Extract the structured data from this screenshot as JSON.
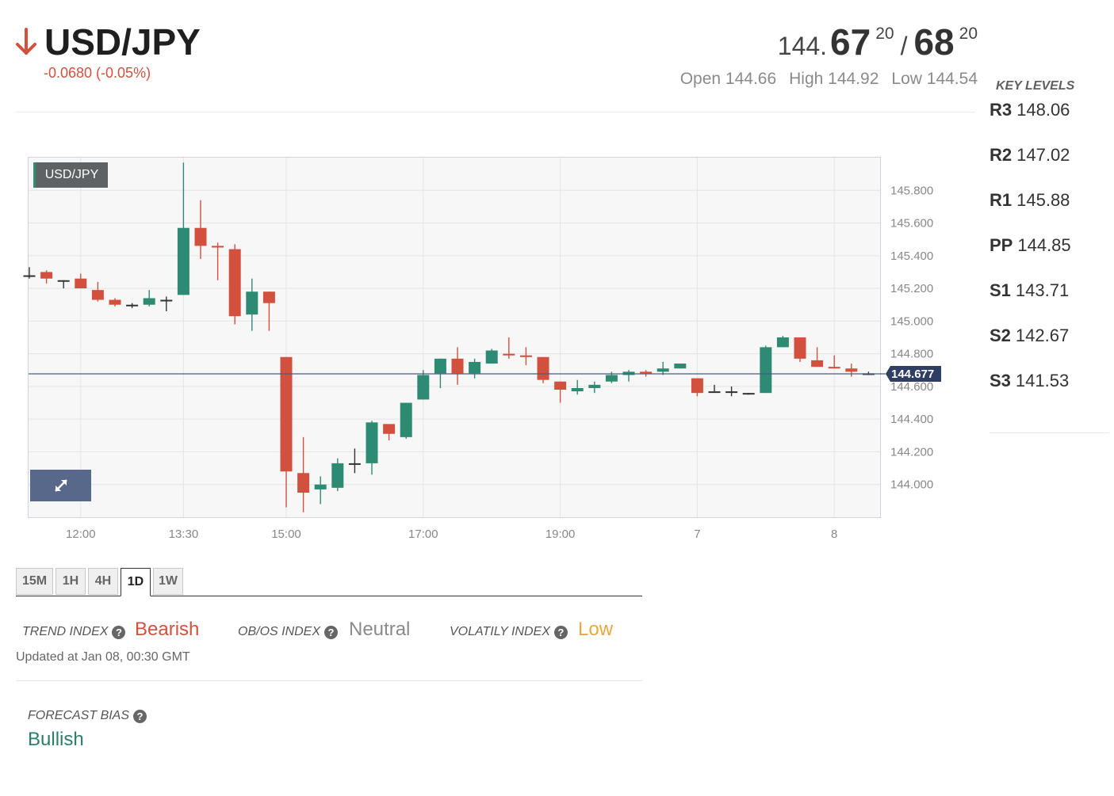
{
  "header": {
    "pair": "USD/JPY",
    "direction_icon": "arrow-down-icon",
    "change": "-0.0680 (-0.05%)",
    "bid_prefix": "144.",
    "bid_big": "67",
    "bid_sup": "20",
    "separator": "/",
    "ask_big": "68",
    "ask_sup": "20",
    "open": "Open 144.66",
    "high": "High 144.92",
    "low": "Low 144.54"
  },
  "key_levels": {
    "title": "KEY LEVELS",
    "items": [
      {
        "name": "R3",
        "value": "148.06"
      },
      {
        "name": "R2",
        "value": "147.02"
      },
      {
        "name": "R1",
        "value": "145.88"
      },
      {
        "name": "PP",
        "value": "144.85"
      },
      {
        "name": "S1",
        "value": "143.71"
      },
      {
        "name": "S2",
        "value": "142.67"
      },
      {
        "name": "S3",
        "value": "141.53"
      }
    ]
  },
  "chart_symbol_label": "USD/JPY",
  "chart_data": {
    "type": "candlestick",
    "title": "",
    "xlabel": "",
    "ylabel": "",
    "ylim": [
      143.8,
      146.0
    ],
    "y_ticks": [
      "145.800",
      "145.600",
      "145.400",
      "145.200",
      "145.000",
      "144.800",
      "144.600",
      "144.400",
      "144.200",
      "144.000"
    ],
    "x_tick_labels": [
      {
        "label": "12:00",
        "index": 3
      },
      {
        "label": "13:30",
        "index": 9
      },
      {
        "label": "15:00",
        "index": 15
      },
      {
        "label": "17:00",
        "index": 23
      },
      {
        "label": "19:00",
        "index": 31
      },
      {
        "label": "7",
        "index": 39
      },
      {
        "label": "8",
        "index": 47
      }
    ],
    "current_price": "144.677",
    "current_value": 144.677,
    "colors": {
      "up": "#2e8b73",
      "down": "#d2513e",
      "doji": "#333333",
      "price_line": "#4a5c7f",
      "price_tag": "#2e3f63"
    },
    "candles": [
      {
        "o": 145.28,
        "h": 145.33,
        "l": 145.26,
        "c": 145.28
      },
      {
        "o": 145.3,
        "h": 145.31,
        "l": 145.23,
        "c": 145.26
      },
      {
        "o": 145.25,
        "h": 145.25,
        "l": 145.2,
        "c": 145.25
      },
      {
        "o": 145.26,
        "h": 145.29,
        "l": 145.2,
        "c": 145.2
      },
      {
        "o": 145.19,
        "h": 145.24,
        "l": 145.12,
        "c": 145.13
      },
      {
        "o": 145.13,
        "h": 145.14,
        "l": 145.09,
        "c": 145.1
      },
      {
        "o": 145.1,
        "h": 145.11,
        "l": 145.08,
        "c": 145.1
      },
      {
        "o": 145.1,
        "h": 145.19,
        "l": 145.09,
        "c": 145.14
      },
      {
        "o": 145.13,
        "h": 145.15,
        "l": 145.06,
        "c": 145.13
      },
      {
        "o": 145.16,
        "h": 145.97,
        "l": 145.16,
        "c": 145.57
      },
      {
        "o": 145.57,
        "h": 145.74,
        "l": 145.38,
        "c": 145.46
      },
      {
        "o": 145.46,
        "h": 145.48,
        "l": 145.25,
        "c": 145.45
      },
      {
        "o": 145.44,
        "h": 145.47,
        "l": 144.98,
        "c": 145.03
      },
      {
        "o": 145.04,
        "h": 145.26,
        "l": 144.94,
        "c": 145.18
      },
      {
        "o": 145.18,
        "h": 145.18,
        "l": 144.94,
        "c": 145.11
      },
      {
        "o": 144.78,
        "h": 144.78,
        "l": 143.86,
        "c": 144.08
      },
      {
        "o": 144.07,
        "h": 144.29,
        "l": 143.83,
        "c": 143.95
      },
      {
        "o": 143.97,
        "h": 144.05,
        "l": 143.88,
        "c": 144.0
      },
      {
        "o": 143.98,
        "h": 144.16,
        "l": 143.96,
        "c": 144.13
      },
      {
        "o": 144.13,
        "h": 144.22,
        "l": 144.07,
        "c": 144.13
      },
      {
        "o": 144.13,
        "h": 144.39,
        "l": 144.06,
        "c": 144.38
      },
      {
        "o": 144.37,
        "h": 144.37,
        "l": 144.27,
        "c": 144.31
      },
      {
        "o": 144.29,
        "h": 144.5,
        "l": 144.28,
        "c": 144.5
      },
      {
        "o": 144.52,
        "h": 144.7,
        "l": 144.52,
        "c": 144.67
      },
      {
        "o": 144.68,
        "h": 144.77,
        "l": 144.59,
        "c": 144.77
      },
      {
        "o": 144.77,
        "h": 144.84,
        "l": 144.61,
        "c": 144.68
      },
      {
        "o": 144.68,
        "h": 144.77,
        "l": 144.65,
        "c": 144.75
      },
      {
        "o": 144.74,
        "h": 144.83,
        "l": 144.74,
        "c": 144.82
      },
      {
        "o": 144.8,
        "h": 144.9,
        "l": 144.77,
        "c": 144.79
      },
      {
        "o": 144.79,
        "h": 144.84,
        "l": 144.73,
        "c": 144.78
      },
      {
        "o": 144.78,
        "h": 144.78,
        "l": 144.62,
        "c": 144.64
      },
      {
        "o": 144.63,
        "h": 144.63,
        "l": 144.5,
        "c": 144.58
      },
      {
        "o": 144.57,
        "h": 144.64,
        "l": 144.55,
        "c": 144.59
      },
      {
        "o": 144.59,
        "h": 144.63,
        "l": 144.56,
        "c": 144.61
      },
      {
        "o": 144.63,
        "h": 144.69,
        "l": 144.62,
        "c": 144.67
      },
      {
        "o": 144.67,
        "h": 144.7,
        "l": 144.63,
        "c": 144.69
      },
      {
        "o": 144.69,
        "h": 144.7,
        "l": 144.66,
        "c": 144.68
      },
      {
        "o": 144.69,
        "h": 144.75,
        "l": 144.67,
        "c": 144.71
      },
      {
        "o": 144.71,
        "h": 144.74,
        "l": 144.71,
        "c": 144.74
      },
      {
        "o": 144.65,
        "h": 144.65,
        "l": 144.54,
        "c": 144.56
      },
      {
        "o": 144.57,
        "h": 144.61,
        "l": 144.57,
        "c": 144.57
      },
      {
        "o": 144.57,
        "h": 144.6,
        "l": 144.54,
        "c": 144.57
      },
      {
        "o": 144.56,
        "h": 144.56,
        "l": 144.55,
        "c": 144.56
      },
      {
        "o": 144.56,
        "h": 144.85,
        "l": 144.56,
        "c": 144.84
      },
      {
        "o": 144.84,
        "h": 144.91,
        "l": 144.84,
        "c": 144.9
      },
      {
        "o": 144.9,
        "h": 144.9,
        "l": 144.75,
        "c": 144.77
      },
      {
        "o": 144.76,
        "h": 144.84,
        "l": 144.72,
        "c": 144.72
      },
      {
        "o": 144.72,
        "h": 144.79,
        "l": 144.71,
        "c": 144.71
      },
      {
        "o": 144.71,
        "h": 144.74,
        "l": 144.66,
        "c": 144.69
      },
      {
        "o": 144.68,
        "h": 144.69,
        "l": 144.67,
        "c": 144.68
      }
    ]
  },
  "timeframes": [
    {
      "label": "15M",
      "active": false
    },
    {
      "label": "1H",
      "active": false
    },
    {
      "label": "4H",
      "active": false
    },
    {
      "label": "1D",
      "active": true
    },
    {
      "label": "1W",
      "active": false
    }
  ],
  "indices": {
    "trend_label": "TREND INDEX",
    "trend_value": "Bearish",
    "trend_color": "#d2513e",
    "obos_label": "OB/OS INDEX",
    "obos_value": "Neutral",
    "obos_color": "#8a8a8a",
    "vol_label": "VOLATILY INDEX",
    "vol_value": "Low",
    "vol_color": "#e8a93a",
    "help_icon": "question-circle-icon"
  },
  "updated": "Updated at Jan 08, 00:30 GMT",
  "forecast": {
    "label": "FORECAST BIAS",
    "value": "Bullish",
    "value_color": "#2e7d6b"
  },
  "expand_icon": "expand-arrows-icon"
}
